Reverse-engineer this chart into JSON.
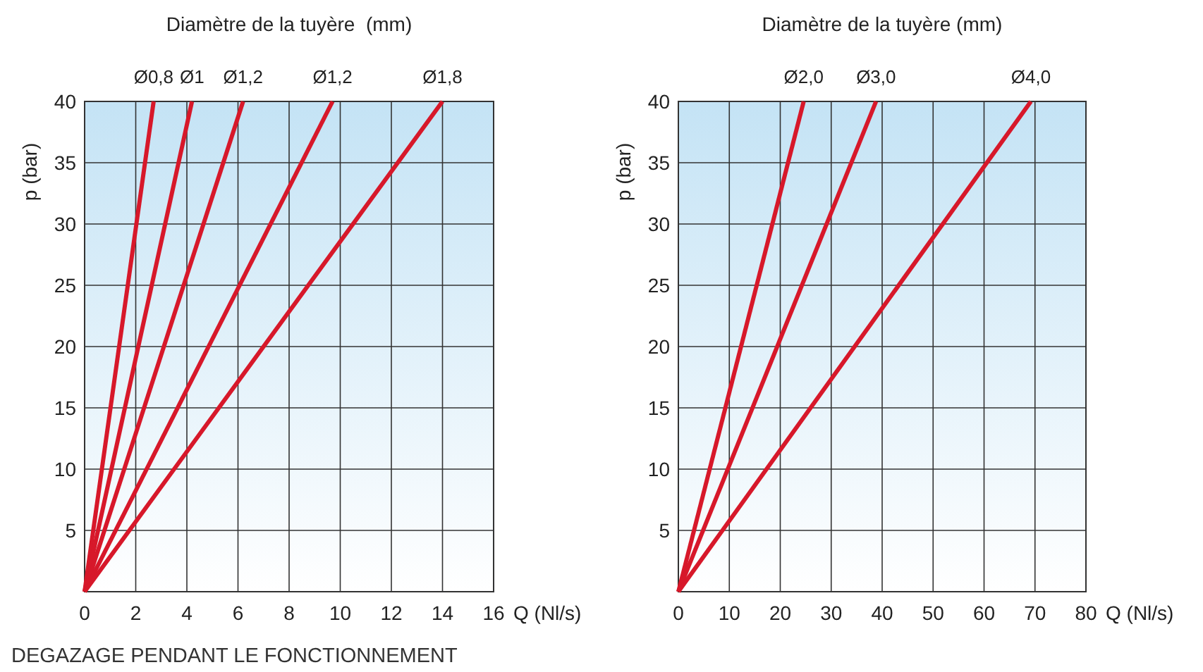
{
  "chart_data": [
    {
      "type": "line",
      "title": "Diamètre de la tuyère  (mm)",
      "xlabel": "Q (Nl/s)",
      "ylabel": "p (bar)",
      "xlim": [
        0,
        16
      ],
      "xticks": [
        0,
        2,
        4,
        6,
        8,
        10,
        12,
        14,
        16
      ],
      "ylim": [
        0,
        40
      ],
      "yticks": [
        {
          "value": 0,
          "label": null
        },
        5,
        10,
        15,
        20,
        25,
        30,
        35,
        40
      ],
      "grid": true,
      "annotations": [
        "DEGAZAGE PENDANT LE FONCTIONNEMENT"
      ],
      "series": [
        {
          "name": "Ø0,8",
          "color": "#d7182a",
          "x": [
            0,
            2.7
          ],
          "values": [
            0,
            40
          ]
        },
        {
          "name": "Ø1",
          "color": "#d7182a",
          "x": [
            0,
            4.2
          ],
          "values": [
            0,
            40
          ]
        },
        {
          "name": "Ø1,2",
          "color": "#d7182a",
          "x": [
            0,
            6.2
          ],
          "values": [
            0,
            40
          ]
        },
        {
          "name": "Ø1,2",
          "color": "#d7182a",
          "x": [
            0,
            9.7
          ],
          "values": [
            0,
            40
          ]
        },
        {
          "name": "Ø1,8",
          "color": "#d7182a",
          "x": [
            0,
            14
          ],
          "values": [
            0,
            40
          ]
        }
      ]
    },
    {
      "type": "line",
      "title": "Diamètre de la tuyère (mm)",
      "xlabel": "Q (Nl/s)",
      "ylabel": "p (bar)",
      "xlim": [
        0,
        80
      ],
      "xticks": [
        0,
        10,
        20,
        30,
        40,
        50,
        60,
        70,
        80
      ],
      "ylim": [
        0,
        40
      ],
      "yticks": [
        {
          "value": 0,
          "label": null
        },
        5,
        10,
        15,
        20,
        25,
        30,
        35,
        40
      ],
      "grid": true,
      "series": [
        {
          "name": "Ø2,0",
          "color": "#d7182a",
          "x": [
            0,
            24.6
          ],
          "values": [
            0,
            40
          ]
        },
        {
          "name": "Ø3,0",
          "color": "#d7182a",
          "x": [
            0,
            38.8
          ],
          "values": [
            0,
            40
          ]
        },
        {
          "name": "Ø4,0",
          "color": "#d7182a",
          "x": [
            0,
            69.2
          ],
          "values": [
            0,
            40
          ]
        }
      ]
    }
  ]
}
